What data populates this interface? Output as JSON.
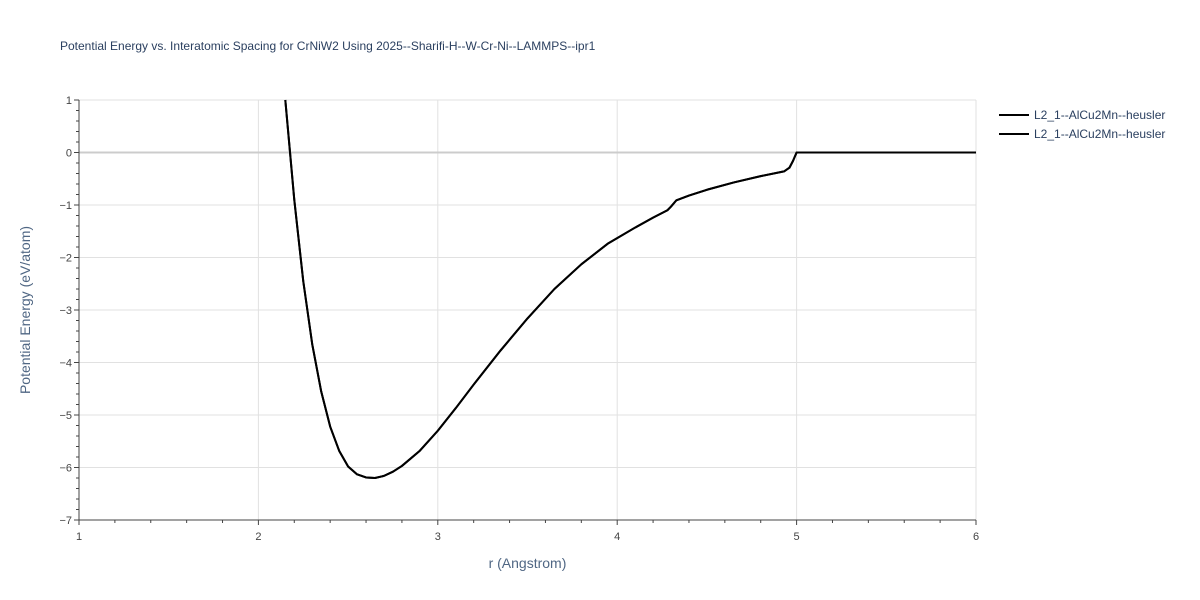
{
  "chart_data": {
    "type": "line",
    "title": "Potential Energy vs. Interatomic Spacing for CrNiW2 Using 2025--Sharifi-H--W-Cr-Ni--LAMMPS--ipr1",
    "xlabel": "r (Angstrom)",
    "ylabel": "Potential Energy (eV/atom)",
    "xlim": [
      1,
      6
    ],
    "ylim": [
      -7,
      1
    ],
    "x_ticks": [
      1,
      2,
      3,
      4,
      5,
      6
    ],
    "x_tick_labels": [
      "1",
      "2",
      "3",
      "4",
      "5",
      "6"
    ],
    "y_ticks": [
      -7,
      -6,
      -5,
      -4,
      -3,
      -2,
      -1,
      0,
      1
    ],
    "y_tick_labels": [
      "−7",
      "−6",
      "−5",
      "−4",
      "−3",
      "−2",
      "−1",
      "0",
      "1"
    ],
    "grid": true,
    "legend_position": "top-right",
    "line_color": "#000000",
    "series": [
      {
        "name": "L2_1--AlCu2Mn--heusler",
        "x": [
          2.15,
          2.2,
          2.25,
          2.3,
          2.35,
          2.4,
          2.45,
          2.5,
          2.55,
          2.6,
          2.65,
          2.7,
          2.75,
          2.8,
          2.9,
          3.0,
          3.1,
          3.2,
          3.35,
          3.5,
          3.65,
          3.8,
          3.95,
          4.1,
          4.2,
          4.28,
          4.3,
          4.33,
          4.4,
          4.5,
          4.65,
          4.8,
          4.93,
          4.96,
          4.98,
          5.0,
          5.2,
          5.5,
          6.0
        ],
        "y": [
          1.0,
          -0.9,
          -2.45,
          -3.65,
          -4.55,
          -5.22,
          -5.68,
          -5.98,
          -6.13,
          -6.19,
          -6.2,
          -6.16,
          -6.08,
          -5.97,
          -5.68,
          -5.3,
          -4.87,
          -4.42,
          -3.77,
          -3.16,
          -2.6,
          -2.13,
          -1.73,
          -1.43,
          -1.24,
          -1.1,
          -1.03,
          -0.91,
          -0.82,
          -0.71,
          -0.57,
          -0.45,
          -0.36,
          -0.29,
          -0.16,
          0.0,
          0.0,
          0.0,
          0.0
        ]
      },
      {
        "name": "L2_1--AlCu2Mn--heusler",
        "x": [
          2.15,
          2.2,
          2.25,
          2.3,
          2.35,
          2.4,
          2.45,
          2.5,
          2.55,
          2.6,
          2.65,
          2.7,
          2.75,
          2.8,
          2.9,
          3.0,
          3.1,
          3.2,
          3.35,
          3.5,
          3.65,
          3.8,
          3.95,
          4.1,
          4.2,
          4.28,
          4.3,
          4.33,
          4.4,
          4.5,
          4.65,
          4.8,
          4.93,
          4.96,
          4.98,
          5.0,
          5.2,
          5.5,
          6.0
        ],
        "y": [
          1.0,
          -0.9,
          -2.45,
          -3.65,
          -4.55,
          -5.22,
          -5.68,
          -5.98,
          -6.13,
          -6.19,
          -6.2,
          -6.16,
          -6.08,
          -5.97,
          -5.68,
          -5.3,
          -4.87,
          -4.42,
          -3.77,
          -3.16,
          -2.6,
          -2.13,
          -1.73,
          -1.43,
          -1.24,
          -1.1,
          -1.03,
          -0.91,
          -0.82,
          -0.71,
          -0.57,
          -0.45,
          -0.36,
          -0.29,
          -0.16,
          0.0,
          0.0,
          0.0,
          0.0
        ]
      }
    ]
  }
}
